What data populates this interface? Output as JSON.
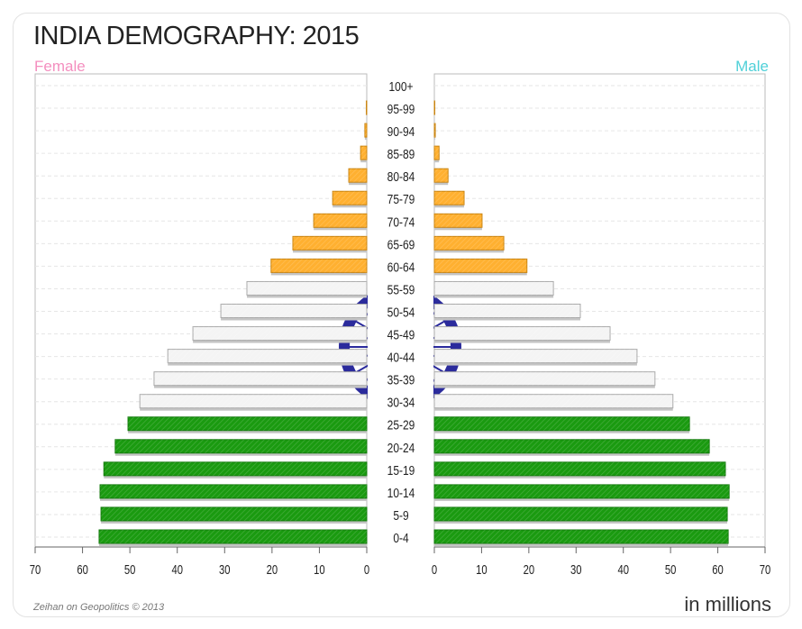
{
  "chart_data": {
    "type": "bar",
    "title": "INDIA DEMOGRAPHY: 2015",
    "units_label": "in millions",
    "credit": "Zeihan on Geopolitics © 2013",
    "categories": [
      "0-4",
      "5-9",
      "10-14",
      "15-19",
      "20-24",
      "25-29",
      "30-34",
      "35-39",
      "40-44",
      "45-49",
      "50-54",
      "55-59",
      "60-64",
      "65-69",
      "70-74",
      "75-79",
      "80-84",
      "85-89",
      "90-94",
      "95-99",
      "100+"
    ],
    "series": [
      {
        "name": "Female",
        "color": "#f48fbf",
        "values": [
          56.5,
          56.1,
          56.3,
          55.5,
          53.1,
          50.4,
          47.9,
          44.9,
          42.0,
          36.7,
          30.8,
          25.3,
          20.2,
          15.6,
          11.2,
          7.2,
          3.8,
          1.3,
          0.4,
          0.1,
          0.0
        ]
      },
      {
        "name": "Male",
        "color": "#4fd0d8",
        "values": [
          62.2,
          62.0,
          62.4,
          61.6,
          58.2,
          54.0,
          50.5,
          46.7,
          42.9,
          37.2,
          30.9,
          25.2,
          19.6,
          14.7,
          10.1,
          6.3,
          2.9,
          1.0,
          0.2,
          0.1,
          0.0
        ]
      }
    ],
    "band_colors": {
      "0-29": "#1a9a10",
      "30-59": "#f4f4f4",
      "60+": "#ffb030"
    },
    "watermark": "ashoka-chakra",
    "watermark_color": "#2b2b9c",
    "xlim": [
      0,
      70
    ],
    "xticks": [
      0,
      10,
      20,
      30,
      40,
      50,
      60,
      70
    ],
    "grid": true,
    "orientation": "horizontal-pyramid"
  }
}
